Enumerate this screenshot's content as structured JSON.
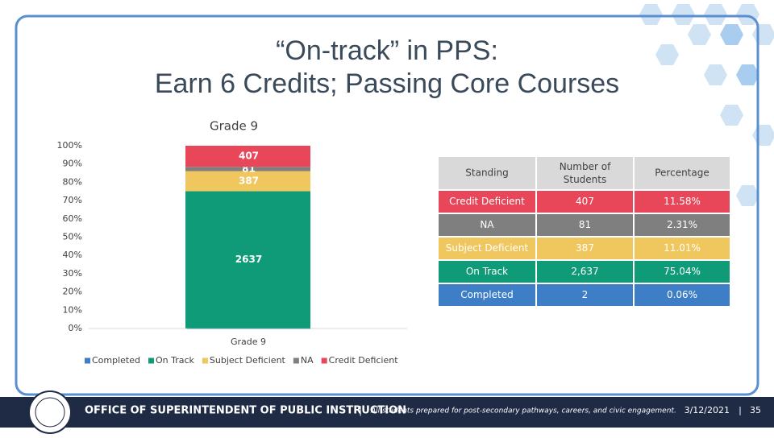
{
  "title_lines": [
    "“On-track” in PPS:",
    "Earn 6 Credits; Passing Core Courses"
  ],
  "chart_data": {
    "type": "bar",
    "stacking": "percent",
    "title": "Grade 9",
    "x_label": "Grade 9",
    "categories": [
      null
    ],
    "series": [
      {
        "name": "Completed",
        "color": "#3d7ec6",
        "values": [
          2
        ]
      },
      {
        "name": "On Track",
        "color": "#0f9b77",
        "values": [
          2637
        ]
      },
      {
        "name": "Subject Deficient",
        "color": "#f0c75e",
        "values": [
          387
        ]
      },
      {
        "name": "NA",
        "color": "#7f7f7f",
        "values": [
          81
        ]
      },
      {
        "name": "Credit Deficient",
        "color": "#e8475a",
        "values": [
          407
        ]
      }
    ],
    "ylim": [
      0,
      100
    ],
    "yticks": [
      {
        "value": 0,
        "label": "0%"
      },
      {
        "value": 10,
        "label": "10%"
      },
      {
        "value": 20,
        "label": "20%"
      },
      {
        "value": 30,
        "label": "30%"
      },
      {
        "value": 40,
        "label": "40%"
      },
      {
        "value": 50,
        "label": "50%"
      },
      {
        "value": 60,
        "label": "60%"
      },
      {
        "value": 70,
        "label": "70%"
      },
      {
        "value": 80,
        "label": "80%"
      },
      {
        "value": 90,
        "label": "90%"
      },
      {
        "value": 100,
        "label": "100%"
      }
    ],
    "grid": false,
    "legend": "bottom"
  },
  "table": {
    "header": [
      "Standing",
      "Number of Students",
      "Percentage"
    ],
    "rows": [
      [
        "Credit Deficient",
        "407",
        "11.58%"
      ],
      [
        "NA",
        "81",
        "2.31%"
      ],
      [
        "Subject Deficient",
        "387",
        "11.01%"
      ],
      [
        "On Track",
        "2,637",
        "75.04%"
      ],
      [
        "Completed",
        "2",
        "0.06%"
      ]
    ],
    "row_colors": [
      "#e8475a",
      "#7f7f7f",
      "#f0c75e",
      "#0f9b77",
      "#3d7ec6"
    ]
  },
  "footer": {
    "office": "OFFICE OF SUPERINTENDENT OF PUBLIC INSTRUCTION",
    "separator": "|",
    "motto": "All students prepared for post-secondary pathways, careers, and civic engagement.",
    "date": "3/12/2021",
    "page": "35"
  }
}
